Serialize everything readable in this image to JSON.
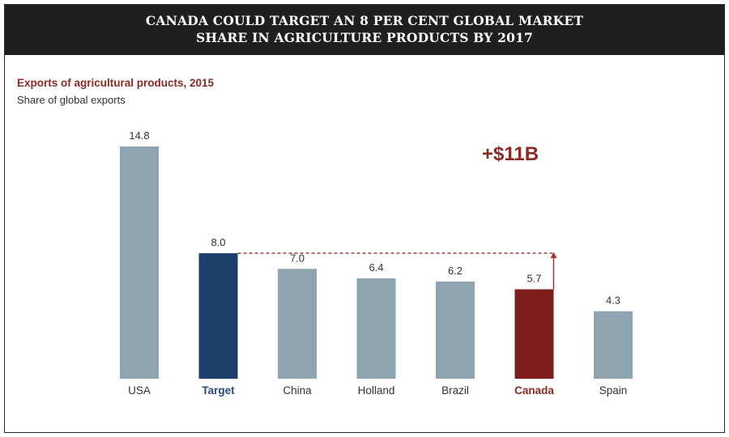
{
  "banner": {
    "line1": "CANADA COULD TARGET AN 8 PER CENT GLOBAL MARKET",
    "line2": "SHARE IN AGRICULTURE PRODUCTS BY 2017"
  },
  "callout": "+$11B",
  "colors": {
    "default_bar": "#8ea4b0",
    "target_bar": "#1f3f6b",
    "canada_bar": "#7d1e1c",
    "target_label": "#2c4a80",
    "canada_label": "#8b2a24",
    "callout": "#8b2a24"
  },
  "chart_data": {
    "type": "bar",
    "title": "Exports of agricultural products, 2015",
    "subtitle": "Share of global exports",
    "categories": [
      "USA",
      "Target",
      "China",
      "Holland",
      "Brazil",
      "Canada",
      "Spain"
    ],
    "values": [
      14.8,
      8.0,
      7.0,
      6.4,
      6.2,
      5.7,
      4.3
    ],
    "value_labels": [
      "14.8",
      "8.0",
      "7.0",
      "6.4",
      "6.2",
      "5.7",
      "4.3"
    ],
    "highlight": {
      "Target": "target",
      "Canada": "canada"
    },
    "ylim": [
      0,
      14.8
    ],
    "annotations": [
      {
        "type": "dashed-reference-line",
        "from": "Target",
        "to": "Canada",
        "value": 8.0
      },
      {
        "type": "arrow",
        "category": "Canada",
        "from_value": 5.7,
        "to_value": 8.0,
        "label": "+$11B"
      }
    ],
    "grid": false,
    "legend": "none"
  }
}
